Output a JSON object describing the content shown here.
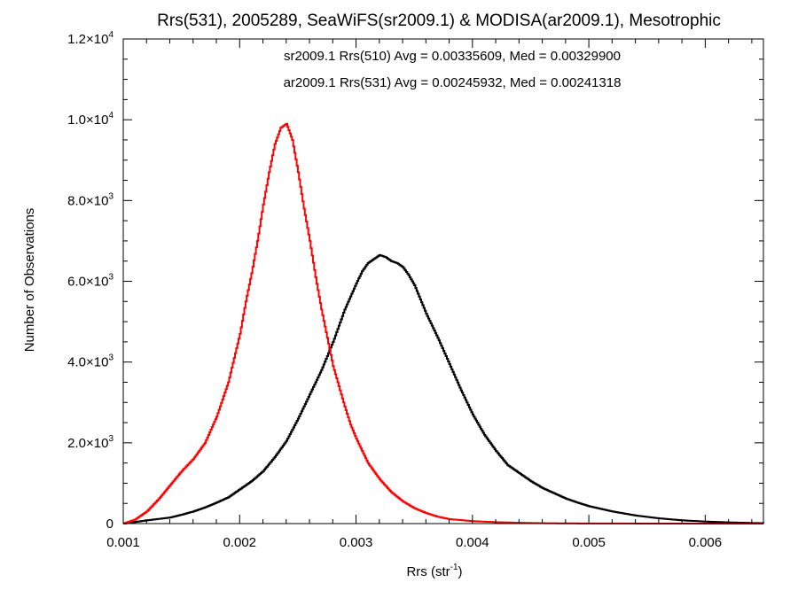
{
  "chart_data": {
    "type": "line",
    "title": "Rrs(531), 2005289, SeaWiFS(sr2009.1) & MODISA(ar2009.1), Mesotrophic",
    "xlabel": "Rrs (str",
    "xlabel_sup": "-1",
    "xlabel_close": ")",
    "ylabel": "Number of Observations",
    "xlim": [
      0.001,
      0.0065
    ],
    "ylim": [
      0,
      12000
    ],
    "x_ticks": [
      {
        "value": 0.001,
        "label": "0.001"
      },
      {
        "value": 0.002,
        "label": "0.002"
      },
      {
        "value": 0.003,
        "label": "0.003"
      },
      {
        "value": 0.004,
        "label": "0.004"
      },
      {
        "value": 0.005,
        "label": "0.005"
      },
      {
        "value": 0.006,
        "label": "0.006"
      }
    ],
    "y_ticks": [
      {
        "value": 0,
        "mant": "0",
        "exp": ""
      },
      {
        "value": 2000,
        "mant": "2.0×10",
        "exp": "3"
      },
      {
        "value": 4000,
        "mant": "4.0×10",
        "exp": "3"
      },
      {
        "value": 6000,
        "mant": "6.0×10",
        "exp": "3"
      },
      {
        "value": 8000,
        "mant": "8.0×10",
        "exp": "3"
      },
      {
        "value": 10000,
        "mant": "1.0×10",
        "exp": "4"
      },
      {
        "value": 12000,
        "mant": "1.2×10",
        "exp": "4"
      }
    ],
    "grid": false,
    "annotations": [
      {
        "text": "sr2009.1 Rrs(510) Avg = 0.00335609, Med = 0.00329900",
        "color": "#000000"
      },
      {
        "text": "ar2009.1 Rrs(531) Avg = 0.00245932, Med = 0.00241318",
        "color": "#ff0000"
      }
    ],
    "series": [
      {
        "color": "#000000",
        "x": [
          0.001,
          0.0012,
          0.0014,
          0.0015,
          0.0016,
          0.0017,
          0.0018,
          0.0019,
          0.002,
          0.0021,
          0.0022,
          0.0023,
          0.0024,
          0.0025,
          0.0026,
          0.0027,
          0.0028,
          0.0029,
          0.003,
          0.00305,
          0.0031,
          0.00315,
          0.0032,
          0.00325,
          0.0033,
          0.00335,
          0.0034,
          0.00345,
          0.0035,
          0.0036,
          0.0037,
          0.0038,
          0.0039,
          0.004,
          0.0041,
          0.0042,
          0.0043,
          0.0044,
          0.0045,
          0.0046,
          0.0047,
          0.0048,
          0.0049,
          0.005,
          0.0052,
          0.0054,
          0.0056,
          0.0058,
          0.006,
          0.0062,
          0.0064,
          0.0065
        ],
        "y": [
          0,
          80,
          150,
          220,
          300,
          400,
          520,
          650,
          850,
          1050,
          1300,
          1650,
          2050,
          2600,
          3200,
          3800,
          4500,
          5300,
          5950,
          6250,
          6450,
          6550,
          6650,
          6600,
          6500,
          6450,
          6350,
          6150,
          5900,
          5200,
          4600,
          3950,
          3300,
          2700,
          2200,
          1800,
          1450,
          1250,
          1050,
          880,
          750,
          620,
          520,
          430,
          300,
          200,
          130,
          80,
          50,
          30,
          15,
          10
        ]
      },
      {
        "color": "#ff0000",
        "x": [
          0.001,
          0.0011,
          0.0012,
          0.0013,
          0.0014,
          0.0015,
          0.0016,
          0.0017,
          0.0018,
          0.0019,
          0.002,
          0.00205,
          0.0021,
          0.00215,
          0.0022,
          0.00225,
          0.0023,
          0.00235,
          0.0024,
          0.00245,
          0.0025,
          0.00255,
          0.0026,
          0.00265,
          0.0027,
          0.00275,
          0.0028,
          0.00285,
          0.0029,
          0.00295,
          0.003,
          0.0031,
          0.0032,
          0.0033,
          0.0034,
          0.0035,
          0.0036,
          0.0037,
          0.0038,
          0.004,
          0.0042,
          0.0044,
          0.0046,
          0.0048,
          0.005,
          0.0055,
          0.006,
          0.0065
        ],
        "y": [
          0,
          100,
          300,
          600,
          950,
          1300,
          1600,
          2000,
          2650,
          3500,
          4700,
          5500,
          6200,
          7000,
          7900,
          8700,
          9400,
          9800,
          9900,
          9500,
          8700,
          7800,
          7000,
          6100,
          5300,
          4600,
          3900,
          3400,
          2900,
          2450,
          2100,
          1500,
          1100,
          780,
          550,
          380,
          260,
          170,
          110,
          60,
          35,
          20,
          10,
          5,
          3,
          1,
          0,
          0
        ]
      }
    ]
  }
}
